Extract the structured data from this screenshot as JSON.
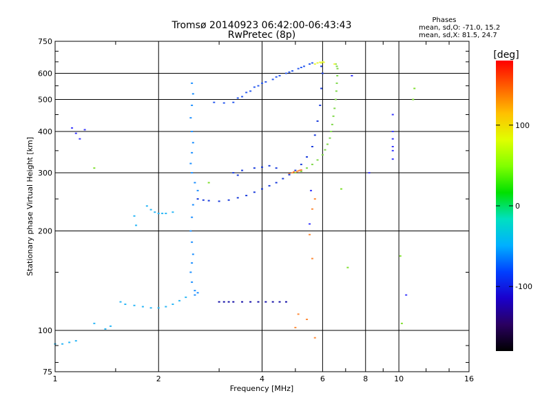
{
  "chart_data": {
    "type": "scatter",
    "title": "Tromsø 20140923 06:42:00-06:43:43",
    "subtitle": "RwPretec (8p)",
    "phase_stats": {
      "heading": "Phases",
      "line1": "mean, sd,O: -71.0, 15.2",
      "line2": "mean, sd,X:  81.5, 24.7"
    },
    "xlabel": "Frequency [MHz]",
    "ylabel": "Stationary phase Virtual Height [km]",
    "x_scale": "log",
    "y_scale": "log",
    "xlim": [
      1,
      16
    ],
    "ylim": [
      75,
      750
    ],
    "x_ticks": [
      "1",
      "2",
      "4",
      "6",
      "8",
      "10",
      "16"
    ],
    "y_ticks": [
      "75",
      "100",
      "200",
      "300",
      "400",
      "500",
      "600",
      "750"
    ],
    "grid": true,
    "colorbar": {
      "label": "[deg]",
      "range": [
        -180,
        180
      ],
      "ticks": [
        "100",
        "0",
        "-100"
      ],
      "colors": [
        "#000000",
        "#2a0060",
        "#1a00cc",
        "#0040ff",
        "#00b0ff",
        "#00e0c0",
        "#00e000",
        "#80ff00",
        "#e0ff00",
        "#ffc000",
        "#ff6000",
        "#ff0000"
      ]
    },
    "series": [
      {
        "color": "#7fd84a",
        "values": [
          [
            5.0,
            300
          ],
          [
            5.2,
            303
          ],
          [
            5.4,
            310
          ],
          [
            5.6,
            318
          ],
          [
            5.8,
            328
          ],
          [
            6.0,
            340
          ],
          [
            6.1,
            352
          ],
          [
            6.2,
            366
          ],
          [
            6.3,
            382
          ],
          [
            6.35,
            400
          ],
          [
            6.4,
            420
          ],
          [
            6.45,
            445
          ],
          [
            6.5,
            470
          ],
          [
            6.55,
            500
          ],
          [
            6.58,
            530
          ],
          [
            6.6,
            560
          ],
          [
            6.62,
            590
          ],
          [
            6.63,
            620
          ],
          [
            6.55,
            640
          ],
          [
            6.6,
            630
          ]
        ]
      },
      {
        "color": "#ff8c3a",
        "values": [
          [
            4.9,
            300
          ],
          [
            4.95,
            302
          ],
          [
            5.05,
            302
          ],
          [
            5.1,
            304
          ],
          [
            5.15,
            305
          ],
          [
            5.2,
            306
          ],
          [
            4.8,
            298
          ]
        ]
      },
      {
        "color": "#e8f83a",
        "values": [
          [
            5.7,
            640
          ],
          [
            5.8,
            645
          ],
          [
            5.9,
            648
          ],
          [
            6.0,
            650
          ],
          [
            6.05,
            648
          ],
          [
            5.95,
            645
          ],
          [
            6.5,
            640
          ]
        ]
      },
      {
        "color": "#1a3cdc",
        "values": [
          [
            2.6,
            250
          ],
          [
            2.7,
            248
          ],
          [
            2.8,
            247
          ],
          [
            3.0,
            246
          ],
          [
            3.2,
            248
          ],
          [
            3.4,
            252
          ],
          [
            3.6,
            256
          ],
          [
            3.8,
            262
          ],
          [
            4.0,
            268
          ],
          [
            4.2,
            274
          ],
          [
            4.4,
            280
          ],
          [
            4.6,
            288
          ],
          [
            4.8,
            296
          ],
          [
            5.0,
            305
          ],
          [
            5.2,
            318
          ],
          [
            5.4,
            335
          ],
          [
            5.6,
            360
          ],
          [
            5.7,
            390
          ],
          [
            5.8,
            430
          ],
          [
            5.9,
            480
          ],
          [
            5.95,
            540
          ],
          [
            6.0,
            600
          ],
          [
            5.95,
            630
          ],
          [
            3.5,
            305
          ],
          [
            3.8,
            310
          ],
          [
            4.0,
            312
          ],
          [
            4.2,
            315
          ],
          [
            4.4,
            310
          ],
          [
            3.3,
            300
          ],
          [
            3.4,
            295
          ]
        ]
      },
      {
        "color": "#2b5cf0",
        "values": [
          [
            2.9,
            490
          ],
          [
            3.1,
            488
          ],
          [
            3.3,
            490
          ],
          [
            3.5,
            510
          ],
          [
            3.7,
            530
          ],
          [
            3.9,
            550
          ],
          [
            4.1,
            565
          ],
          [
            4.3,
            575
          ],
          [
            4.5,
            590
          ],
          [
            4.7,
            600
          ],
          [
            4.9,
            610
          ],
          [
            5.1,
            620
          ],
          [
            5.3,
            630
          ],
          [
            5.5,
            640
          ],
          [
            3.6,
            525
          ],
          [
            4.0,
            560
          ],
          [
            4.4,
            585
          ],
          [
            4.8,
            605
          ],
          [
            5.2,
            625
          ],
          [
            5.6,
            645
          ],
          [
            3.4,
            505
          ],
          [
            3.8,
            545
          ]
        ]
      },
      {
        "color": "#1e90ff",
        "values": [
          [
            2.5,
            560
          ],
          [
            2.52,
            520
          ],
          [
            2.5,
            480
          ],
          [
            2.48,
            440
          ],
          [
            2.5,
            400
          ],
          [
            2.52,
            370
          ],
          [
            2.5,
            345
          ],
          [
            2.48,
            320
          ],
          [
            2.5,
            300
          ],
          [
            2.55,
            280
          ],
          [
            2.6,
            265
          ],
          [
            2.52,
            240
          ],
          [
            2.5,
            220
          ],
          [
            2.48,
            200
          ],
          [
            2.5,
            185
          ],
          [
            2.52,
            170
          ],
          [
            2.5,
            160
          ],
          [
            2.48,
            150
          ],
          [
            2.5,
            140
          ],
          [
            2.55,
            132
          ],
          [
            2.6,
            130
          ],
          [
            2.55,
            128
          ]
        ]
      },
      {
        "color": "#29b6f6",
        "values": [
          [
            1.55,
            122
          ],
          [
            1.6,
            120
          ],
          [
            1.7,
            119
          ],
          [
            1.8,
            118
          ],
          [
            1.9,
            117
          ],
          [
            2.0,
            117
          ],
          [
            2.1,
            118
          ],
          [
            2.2,
            120
          ],
          [
            2.3,
            123
          ],
          [
            2.4,
            126
          ],
          [
            1.85,
            238
          ],
          [
            1.9,
            232
          ],
          [
            1.95,
            228
          ],
          [
            2.0,
            226
          ],
          [
            2.05,
            226
          ],
          [
            2.1,
            226
          ],
          [
            2.2,
            228
          ],
          [
            1.7,
            222
          ],
          [
            1.72,
            208
          ],
          [
            1.0,
            91
          ],
          [
            1.05,
            91
          ],
          [
            1.1,
            92
          ],
          [
            1.15,
            93
          ],
          [
            1.4,
            101
          ],
          [
            1.45,
            103
          ],
          [
            1.3,
            105
          ]
        ]
      },
      {
        "color": "#1410a8",
        "values": [
          [
            3.0,
            122
          ],
          [
            3.1,
            122
          ],
          [
            3.2,
            122
          ],
          [
            3.3,
            122
          ],
          [
            3.5,
            122
          ],
          [
            3.7,
            122
          ],
          [
            3.9,
            122
          ],
          [
            4.1,
            122
          ],
          [
            4.3,
            122
          ],
          [
            4.5,
            122
          ],
          [
            4.7,
            122
          ]
        ]
      },
      {
        "color": "#3a3aff",
        "values": [
          [
            1.12,
            410
          ],
          [
            1.15,
            395
          ],
          [
            1.18,
            380
          ],
          [
            1.22,
            405
          ],
          [
            9.6,
            400
          ],
          [
            9.6,
            380
          ],
          [
            9.6,
            360
          ],
          [
            9.6,
            350
          ],
          [
            9.6,
            330
          ],
          [
            9.6,
            450
          ],
          [
            8.2,
            300
          ],
          [
            7.3,
            590
          ],
          [
            5.5,
            210
          ],
          [
            5.55,
            265
          ],
          [
            10.5,
            128
          ]
        ]
      },
      {
        "color": "#ff8c3a",
        "values": [
          [
            5.6,
            165
          ],
          [
            5.5,
            195
          ],
          [
            5.6,
            233
          ],
          [
            5.7,
            250
          ],
          [
            5.4,
            108
          ],
          [
            5.0,
            102
          ],
          [
            5.1,
            112
          ],
          [
            5.7,
            95
          ]
        ]
      },
      {
        "color": "#80e030",
        "values": [
          [
            2.8,
            280
          ],
          [
            6.8,
            268
          ],
          [
            7.1,
            155
          ],
          [
            10.1,
            168
          ],
          [
            10.2,
            105
          ],
          [
            11.0,
            500
          ],
          [
            11.1,
            540
          ],
          [
            1.3,
            310
          ]
        ]
      }
    ]
  }
}
